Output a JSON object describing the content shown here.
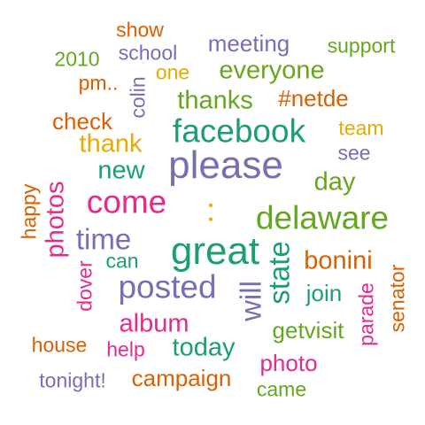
{
  "words": {
    "show": "show",
    "school": "school",
    "meeting": "meeting",
    "support": "support",
    "w2010": "2010",
    "colin": "colin",
    "one": "one",
    "everyone": "everyone",
    "pm": "pm..",
    "thanks": "thanks",
    "netde": "#netde",
    "check": "check",
    "facebook": "facebook",
    "team": "team",
    "thank": "thank",
    "see": "see",
    "new": "new",
    "please": "please",
    "day": "day",
    "happy": "happy",
    "photos": "photos",
    "come": "come",
    "colon": ":",
    "delaware": "delaware",
    "time": "time",
    "great": "great",
    "state": "state",
    "can": "can",
    "bonini": "bonini",
    "dover": "dover",
    "posted": "posted",
    "will": "will",
    "join": "join",
    "senator": "senator",
    "parade": "parade",
    "album": "album",
    "getvisit": "getvisit",
    "house": "house",
    "help": "help",
    "today": "today",
    "photo": "photo",
    "tonight": "tonight!",
    "campaign": "campaign",
    "came": "came"
  }
}
